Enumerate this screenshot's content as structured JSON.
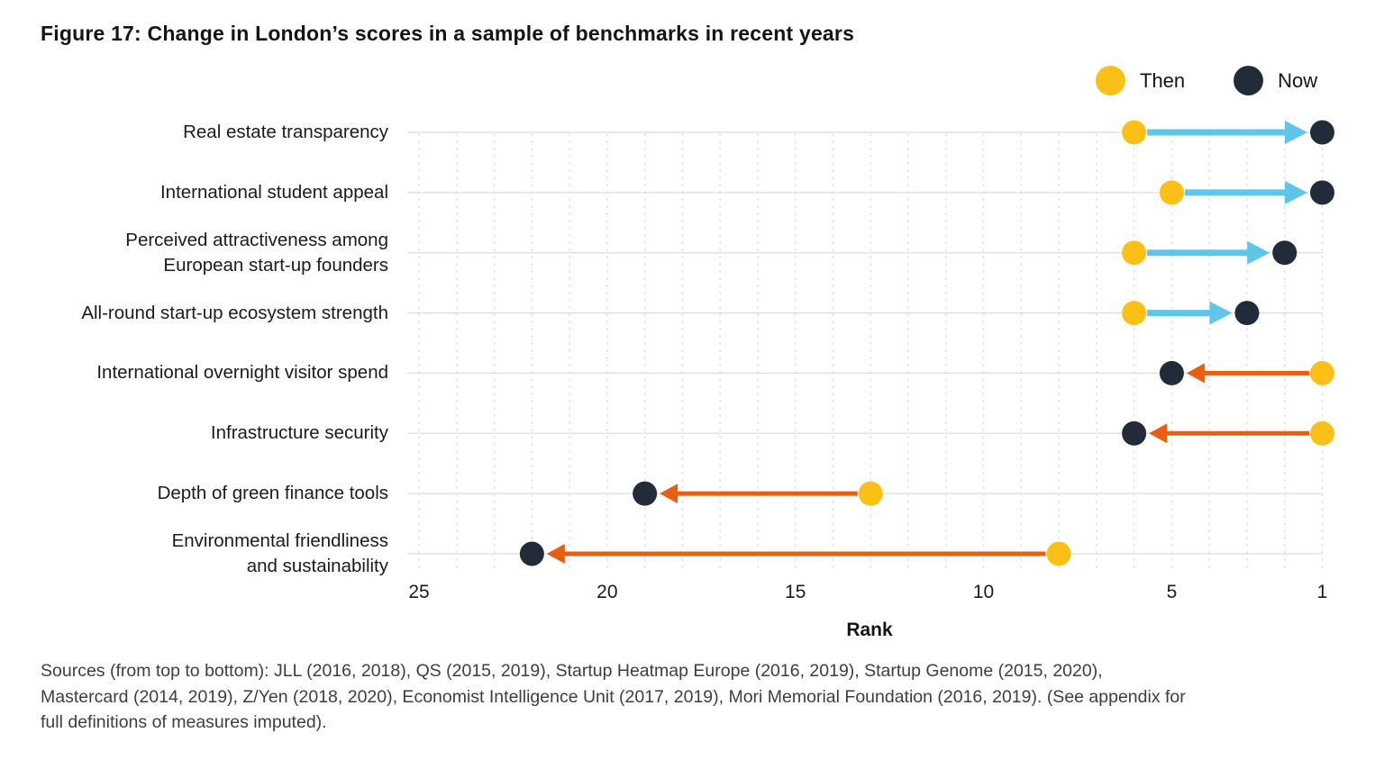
{
  "colors": {
    "then": "#FAC017",
    "now": "#222B3A",
    "improve_arrow": "#5FC5E9",
    "decline_arrow": "#E95F12",
    "grid_vertical": "#E0E0E0",
    "grid_horizontal": "#DDDDDD",
    "title_text": "#141414",
    "footer_text": "#3E3E3E"
  },
  "chart_data": {
    "type": "dumbbell",
    "title": "Figure 17: Change in London’s scores in a sample of benchmarks in recent years",
    "xlabel": "Rank",
    "x_ticks": [
      25,
      20,
      15,
      10,
      5,
      1
    ],
    "x_axis": {
      "min_rank": 1,
      "max_rank": 25,
      "reversed": true,
      "gridline_every_rank": 1,
      "grid": true
    },
    "legend": [
      {
        "label": "Then",
        "color": "#FAC017"
      },
      {
        "label": "Now",
        "color": "#222B3A"
      }
    ],
    "legend_position": "top-right",
    "rows": [
      {
        "category": "Real estate transparency",
        "label_lines": [
          "Real estate transparency"
        ],
        "then": 6,
        "now": 1,
        "direction": "improved"
      },
      {
        "category": "International student appeal",
        "label_lines": [
          "International student appeal"
        ],
        "then": 5,
        "now": 1,
        "direction": "improved"
      },
      {
        "category": "Perceived attractiveness among European start-up founders",
        "label_lines": [
          "Perceived attractiveness among",
          "European start-up founders"
        ],
        "then": 6,
        "now": 2,
        "direction": "improved"
      },
      {
        "category": "All-round start-up ecosystem strength",
        "label_lines": [
          "All-round start-up ecosystem strength"
        ],
        "then": 6,
        "now": 3,
        "direction": "improved"
      },
      {
        "category": "International overnight visitor spend",
        "label_lines": [
          "International overnight visitor spend"
        ],
        "then": 1,
        "now": 5,
        "direction": "declined"
      },
      {
        "category": "Infrastructure security",
        "label_lines": [
          "Infrastructure security"
        ],
        "then": 1,
        "now": 6,
        "direction": "declined"
      },
      {
        "category": "Depth of green finance tools",
        "label_lines": [
          "Depth of green finance tools"
        ],
        "then": 13,
        "now": 19,
        "direction": "declined"
      },
      {
        "category": "Environmental friendliness and sustainability",
        "label_lines": [
          "Environmental friendliness",
          "and sustainability"
        ],
        "then": 8,
        "now": 22,
        "direction": "declined"
      }
    ]
  },
  "footer_lines": [
    "Sources (from top to bottom): JLL (2016, 2018), QS (2015, 2019), Startup Heatmap Europe (2016, 2019), Startup Genome (2015, 2020),",
    "Mastercard (2014, 2019), Z/Yen (2018, 2020), Economist Intelligence Unit (2017, 2019), Mori Memorial Foundation (2016, 2019). (See appendix for",
    "full definitions of measures imputed)."
  ]
}
